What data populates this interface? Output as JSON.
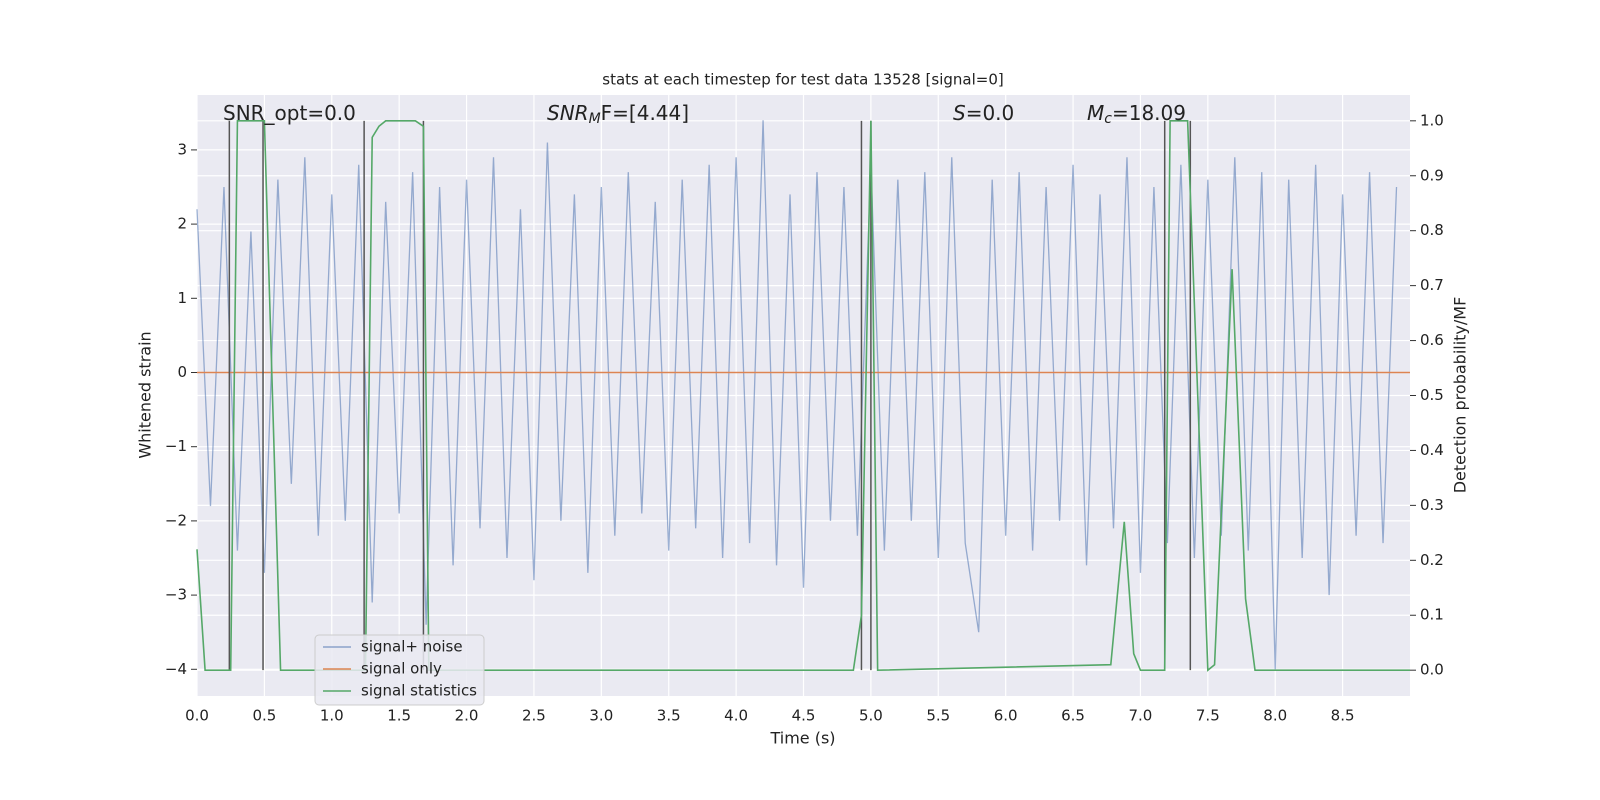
{
  "chart_data": {
    "type": "line",
    "title": "stats at each timestep for test data 13528 [signal=0]",
    "xlabel": "Time (s)",
    "ylabel": "Whitened strain",
    "y2label": "Detection probability/MF",
    "xlim": [
      0,
      9.0
    ],
    "ylim": [
      -4.36,
      3.74
    ],
    "y2lim": [
      -0.047,
      1.047
    ],
    "grid": true,
    "legend": "lower left",
    "xticks": [
      {
        "value": 0,
        "label": "0.0"
      },
      {
        "value": 0.5,
        "label": "0.5"
      },
      {
        "value": 1,
        "label": "1.0"
      },
      {
        "value": 1.5,
        "label": "1.5"
      },
      {
        "value": 2,
        "label": "2.0"
      },
      {
        "value": 2.5,
        "label": "2.5"
      },
      {
        "value": 3,
        "label": "3.0"
      },
      {
        "value": 3.5,
        "label": "3.5"
      },
      {
        "value": 4,
        "label": "4.0"
      },
      {
        "value": 4.5,
        "label": "4.5"
      },
      {
        "value": 5,
        "label": "5.0"
      },
      {
        "value": 5.5,
        "label": "5.5"
      },
      {
        "value": 6,
        "label": "6.0"
      },
      {
        "value": 6.5,
        "label": "6.5"
      },
      {
        "value": 7,
        "label": "7.0"
      },
      {
        "value": 7.5,
        "label": "7.5"
      },
      {
        "value": 8,
        "label": "8.0"
      },
      {
        "value": 8.5,
        "label": "8.5"
      }
    ],
    "yticks": [
      {
        "value": -4,
        "label": "−4"
      },
      {
        "value": -3,
        "label": "−3"
      },
      {
        "value": -2,
        "label": "−2"
      },
      {
        "value": -1,
        "label": "−1"
      },
      0,
      1,
      2,
      3
    ],
    "y2ticks": [
      {
        "value": 0,
        "label": "0.0"
      },
      {
        "value": 0.1,
        "label": "0.1"
      },
      {
        "value": 0.2,
        "label": "0.2"
      },
      {
        "value": 0.3,
        "label": "0.3"
      },
      {
        "value": 0.4,
        "label": "0.4"
      },
      {
        "value": 0.5,
        "label": "0.5"
      },
      {
        "value": 0.6,
        "label": "0.6"
      },
      {
        "value": 0.7,
        "label": "0.7"
      },
      {
        "value": 0.8,
        "label": "0.8"
      },
      {
        "value": 0.9,
        "label": "0.9"
      },
      {
        "value": 1,
        "label": "1.0"
      }
    ],
    "series": [
      {
        "name": "signal+ noise",
        "color": "#4c72b0",
        "x": [
          0,
          0.1,
          0.2,
          0.3,
          0.4,
          0.5,
          0.6,
          0.7,
          0.8,
          0.9,
          1,
          1.1,
          1.2,
          1.3,
          1.4,
          1.5,
          1.6,
          1.7,
          1.8,
          1.9,
          2,
          2.1,
          2.2,
          2.3,
          2.4,
          2.5,
          2.6,
          2.7,
          2.8,
          2.9,
          3,
          3.1,
          3.2,
          3.3,
          3.4,
          3.5,
          3.6,
          3.7,
          3.8,
          3.9,
          4,
          4.1,
          4.2,
          4.3,
          4.4,
          4.5,
          4.6,
          4.7,
          4.8,
          4.9,
          5,
          5.1,
          5.2,
          5.3,
          5.4,
          5.5,
          5.6,
          5.7,
          5.8,
          5.9,
          6,
          6.1,
          6.2,
          6.3,
          6.4,
          6.5,
          6.6,
          6.7,
          6.8,
          6.9,
          7,
          7.1,
          7.2,
          7.3,
          7.4,
          7.5,
          7.6,
          7.7,
          7.8,
          7.9,
          8,
          8.1,
          8.2,
          8.3,
          8.4,
          8.5,
          8.6,
          8.7,
          8.8,
          8.9
        ],
        "values": [
          2.2,
          -1.8,
          2.5,
          -2.4,
          1.9,
          -2.7,
          2.6,
          -1.5,
          2.9,
          -2.2,
          2.4,
          -2.0,
          2.8,
          -3.1,
          2.3,
          -1.9,
          2.7,
          -3.4,
          2.5,
          -2.6,
          2.6,
          -2.1,
          2.9,
          -2.5,
          2.2,
          -2.8,
          3.1,
          -2.0,
          2.4,
          -2.7,
          2.5,
          -2.2,
          2.7,
          -1.9,
          2.3,
          -2.4,
          2.6,
          -2.1,
          2.8,
          -2.5,
          2.9,
          -2.3,
          3.4,
          -2.6,
          2.4,
          -2.9,
          2.7,
          -2.0,
          2.5,
          -2.2,
          2.8,
          -2.4,
          2.6,
          -2.0,
          2.7,
          -2.5,
          2.9,
          -2.3,
          -3.5,
          2.6,
          -2.2,
          2.7,
          -2.4,
          2.5,
          -2.0,
          2.8,
          -2.6,
          2.4,
          -2.1,
          2.9,
          -2.7,
          2.5,
          -2.3,
          2.8,
          -2.5,
          2.6,
          -2.2,
          2.9,
          -2.4,
          2.7,
          -4.0,
          2.6,
          -2.5,
          2.8,
          -3.0,
          2.4,
          -2.2,
          2.7,
          -2.3,
          2.5
        ]
      },
      {
        "name": "signal only",
        "color": "#dd8452",
        "x": [
          0,
          9.0
        ],
        "values": [
          0,
          0
        ]
      },
      {
        "name": "signal statistics",
        "color": "#55a868",
        "axis": "y2",
        "x": [
          0,
          0.06,
          0.25,
          0.3,
          0.5,
          0.62,
          1.25,
          1.3,
          1.35,
          1.4,
          1.62,
          1.68,
          1.72,
          4.87,
          4.93,
          5.0,
          5.05,
          6.78,
          6.88,
          6.95,
          7.0,
          7.18,
          7.22,
          7.25,
          7.35,
          7.5,
          7.55,
          7.68,
          7.78,
          7.85,
          9.0
        ],
        "values": [
          0.22,
          0,
          0,
          1,
          1,
          0,
          0,
          0.97,
          0.99,
          1,
          1,
          0.99,
          0,
          0,
          0.1,
          1,
          0,
          0.01,
          0.27,
          0.03,
          0,
          0,
          1,
          1,
          1,
          0,
          0.01,
          0.73,
          0.13,
          0,
          0
        ]
      }
    ],
    "vlines": {
      "color": "#555555",
      "axis": "y2",
      "ymin": 0,
      "ymax": 1,
      "x": [
        0.24,
        0.49,
        1.24,
        1.68,
        4.93,
        5.0,
        7.18,
        7.37
      ]
    },
    "annotations": [
      {
        "text": "SNR_opt=0.0"
      },
      {
        "text": "SNR",
        "sub": "M",
        "rest": "F=[4.44]",
        "italic": true
      },
      {
        "text": "S",
        "rest": "=0.0",
        "italic": true
      },
      {
        "text": "M",
        "sub": "c",
        "rest": "=18.09",
        "italic": true
      }
    ]
  }
}
